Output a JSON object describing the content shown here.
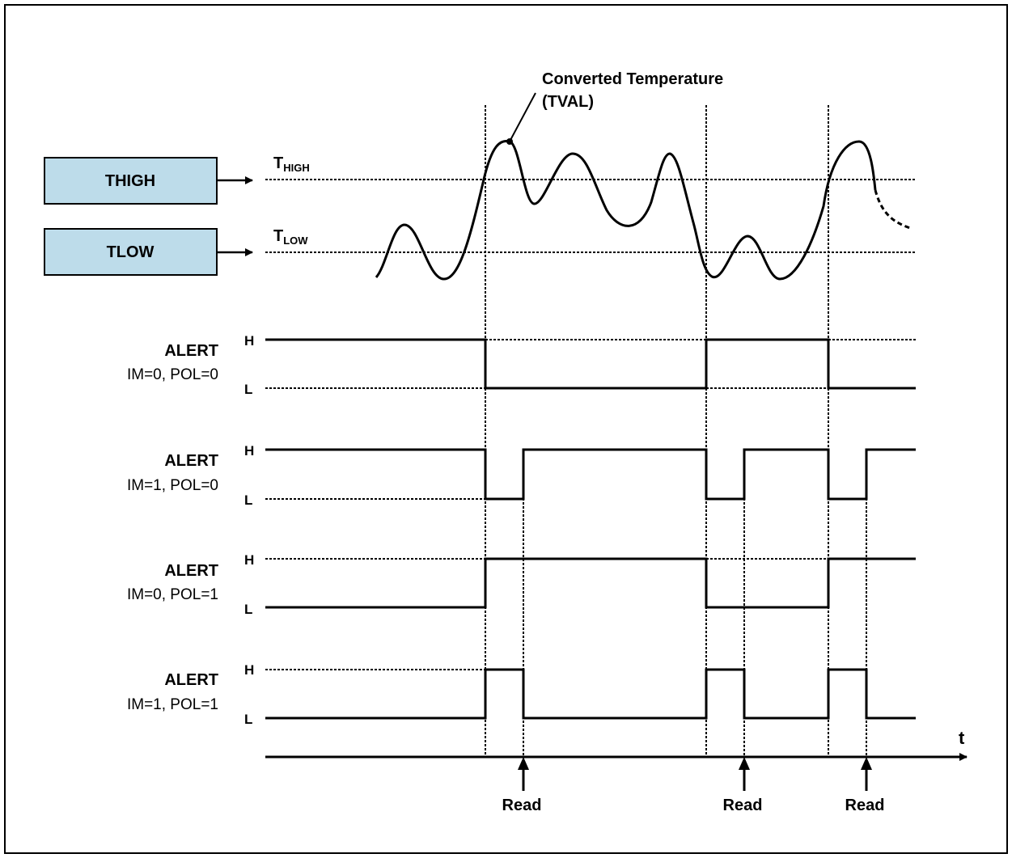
{
  "threshold_boxes": {
    "high_box_label": "THIGH",
    "low_box_label": "TLOW",
    "box_fill": "#BDDCEA"
  },
  "thresholds": {
    "high_base": "T",
    "high_sub": "HIGH",
    "low_base": "T",
    "low_sub": "LOW"
  },
  "curve": {
    "label_line1": "Converted Temperature",
    "label_line2": "(TVAL)"
  },
  "traces": [
    {
      "name": "ALERT",
      "mode": "IM=0, POL=0",
      "high": "H",
      "low": "L"
    },
    {
      "name": "ALERT",
      "mode": "IM=1, POL=0",
      "high": "H",
      "low": "L"
    },
    {
      "name": "ALERT",
      "mode": "IM=0, POL=1",
      "high": "H",
      "low": "L"
    },
    {
      "name": "ALERT",
      "mode": "IM=1, POL=1",
      "high": "H",
      "low": "L"
    }
  ],
  "time_axis": {
    "label": "t"
  },
  "reads": [
    "Read",
    "Read",
    "Read"
  ]
}
